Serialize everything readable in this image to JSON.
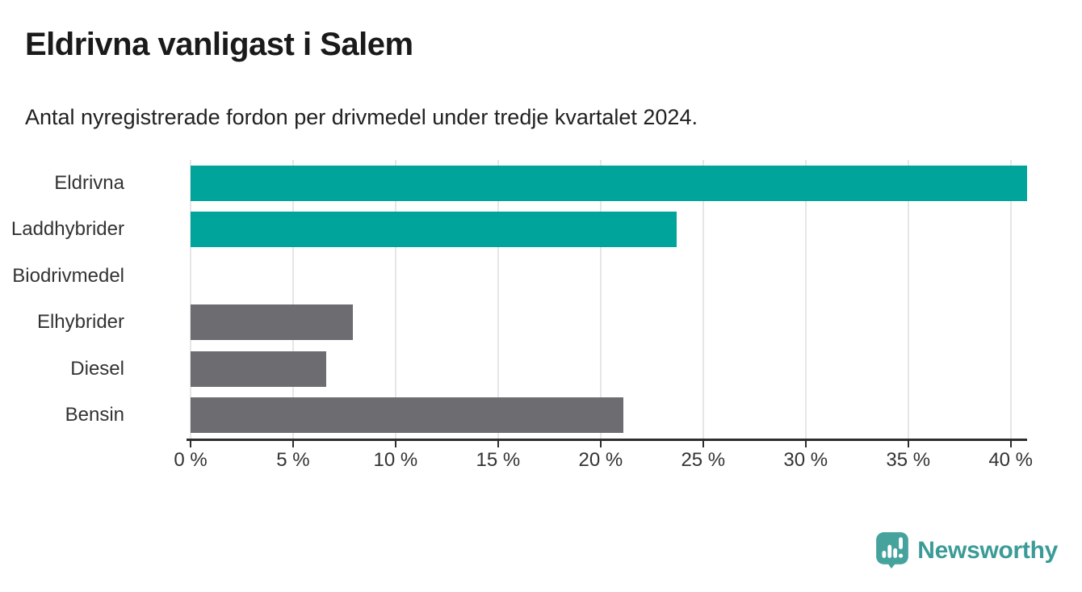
{
  "header": {
    "title": "Eldrivna vanligast i Salem",
    "subtitle": "Antal nyregistrerade fordon per drivmedel under tredje kvartalet 2024."
  },
  "chart_data": {
    "type": "bar",
    "orientation": "horizontal",
    "title": "Eldrivna vanligast i Salem",
    "subtitle": "Antal nyregistrerade fordon per drivmedel under tredje kvartalet 2024.",
    "categories": [
      "Eldrivna",
      "Laddhybrider",
      "Biodrivmedel",
      "Elhybrider",
      "Diesel",
      "Bensin"
    ],
    "values": [
      40.8,
      23.7,
      0,
      7.9,
      6.6,
      21.1
    ],
    "unit": "%",
    "bar_colors": [
      "#00a49b",
      "#00a49b",
      "#6c6c71",
      "#6c6c71",
      "#6c6c71",
      "#6c6c71"
    ],
    "highlight_color": "#00a49b",
    "default_color": "#6c6c71",
    "xlabel": "",
    "ylabel": "",
    "xlim": [
      0,
      40.8
    ],
    "ticks": [
      0,
      5,
      10,
      15,
      20,
      25,
      30,
      35,
      40
    ],
    "tick_labels": [
      "0 %",
      "5 %",
      "10 %",
      "15 %",
      "20 %",
      "25 %",
      "30 %",
      "35 %",
      "40 %"
    ],
    "grid": true,
    "legend": false
  },
  "footer": {
    "brand": "Newsworthy",
    "brand_color": "#3b9b97",
    "logo_icon": "bar-chart-speech-bubble-icon",
    "logo_bubble_color": "#45a29d"
  }
}
